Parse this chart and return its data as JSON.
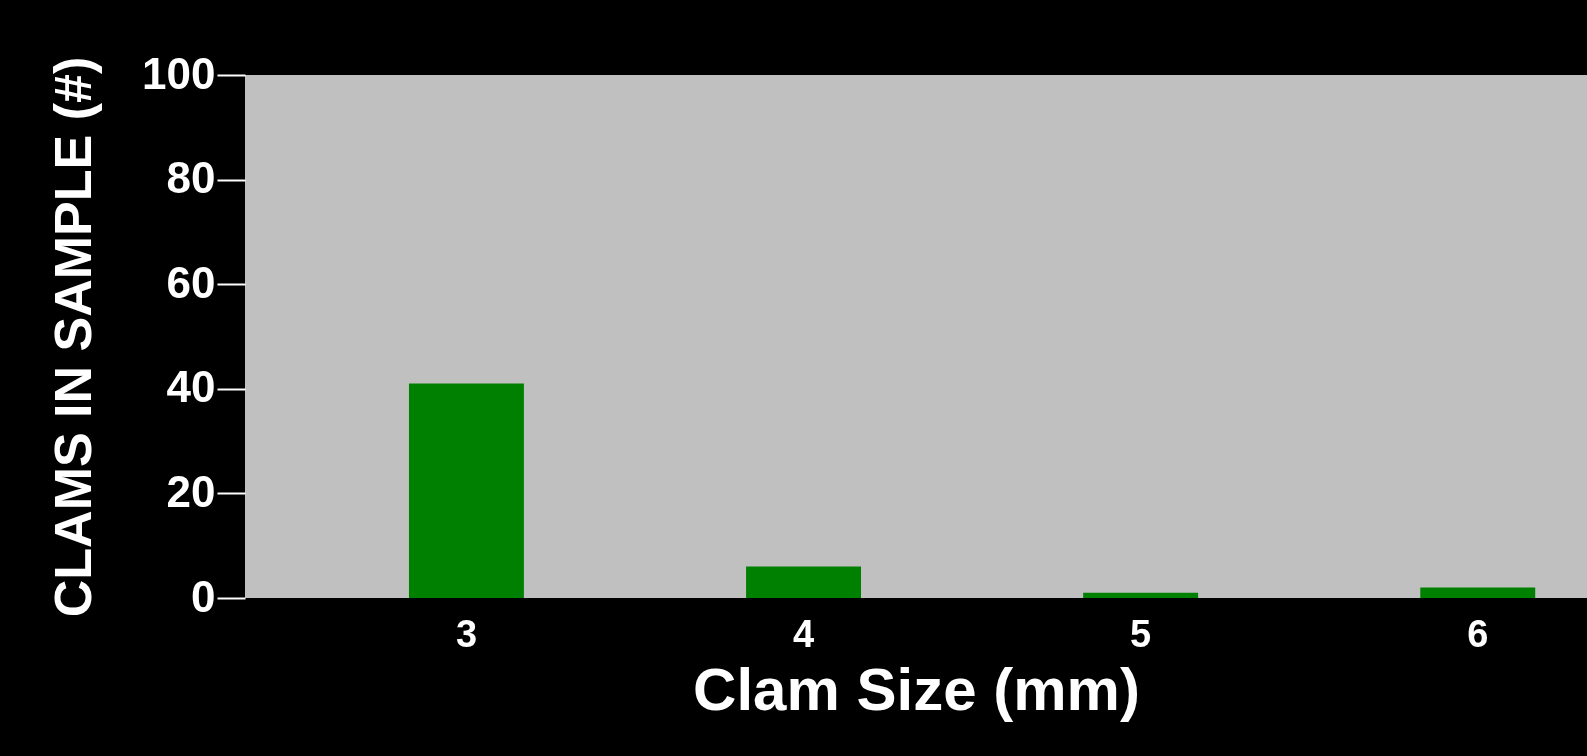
{
  "chart_data": {
    "type": "bar",
    "xlabel": "Clam Size (mm)",
    "ylabel": "CLAMS IN SAMPLE (#)",
    "categories": [
      "3",
      "4",
      "5",
      "6"
    ],
    "values": [
      41,
      6,
      1,
      2
    ],
    "color": "#008000",
    "ylim": [
      0,
      100
    ],
    "yticks": [
      0,
      20,
      40,
      60,
      80,
      100
    ],
    "grid": false
  }
}
